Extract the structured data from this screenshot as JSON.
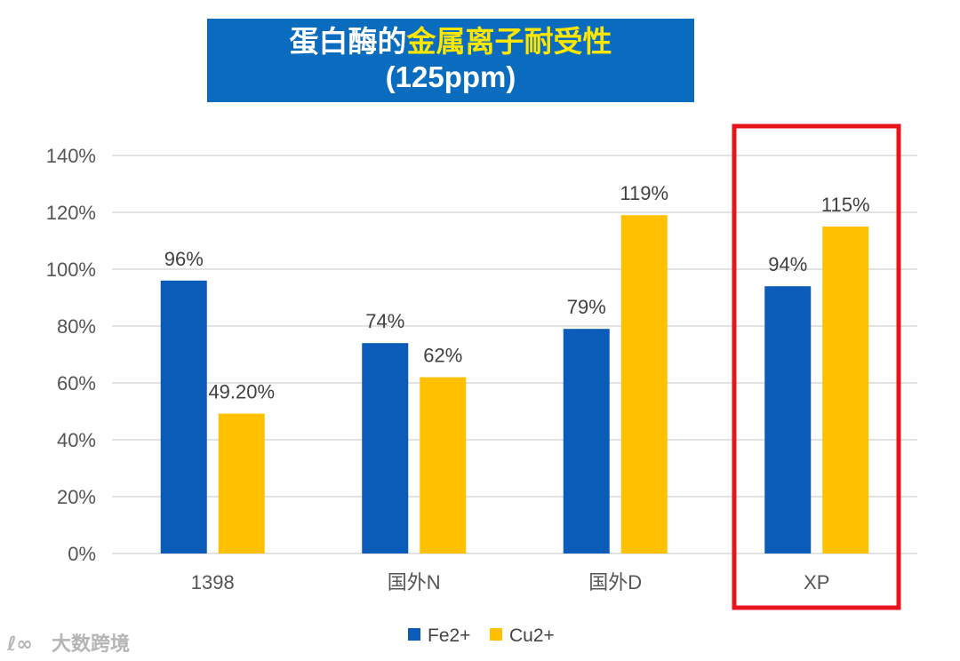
{
  "title": {
    "line1_prefix": "蛋白酶的",
    "line1_highlight": "金属离子耐受性",
    "line2": "(125ppm)"
  },
  "colors": {
    "title_bg": "#0a6cbf",
    "title_highlight": "#ffe600",
    "fe": "#0b5cb8",
    "cu": "#ffc000",
    "highlight_box": "#e8141b",
    "grid": "#d9d9d9"
  },
  "chart_data": {
    "type": "bar",
    "categories": [
      "1398",
      "国外N",
      "国外D",
      "XP"
    ],
    "series": [
      {
        "name": "Fe2+",
        "values": [
          96,
          74,
          79,
          94
        ],
        "labels": [
          "96%",
          "74%",
          "79%",
          "94%"
        ]
      },
      {
        "name": "Cu2+",
        "values": [
          49.2,
          62,
          119,
          115
        ],
        "labels": [
          "49.20%",
          "62%",
          "119%",
          "115%"
        ]
      }
    ],
    "ylim": [
      0,
      140
    ],
    "yticks": [
      "0%",
      "20%",
      "40%",
      "60%",
      "80%",
      "100%",
      "120%",
      "140%"
    ],
    "grid": true,
    "legend": "bottom",
    "highlighted_category": "XP"
  },
  "watermark": "大数跨境"
}
